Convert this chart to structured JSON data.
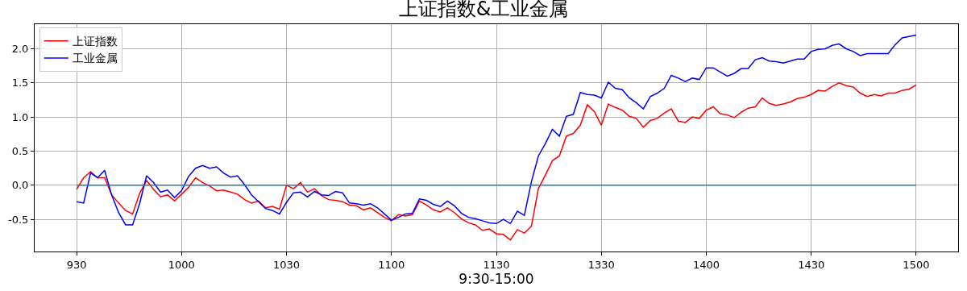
{
  "chart_data": {
    "type": "line",
    "title": "上证指数&工业金属",
    "xlabel": "9:30-15:00",
    "categories": [
      "930",
      null,
      null,
      null,
      null,
      null,
      null,
      null,
      null,
      null,
      null,
      null,
      null,
      null,
      null,
      "1000",
      null,
      null,
      null,
      null,
      null,
      null,
      null,
      null,
      null,
      null,
      null,
      null,
      null,
      null,
      "1030",
      null,
      null,
      null,
      null,
      null,
      null,
      null,
      null,
      null,
      null,
      null,
      null,
      null,
      null,
      "1100",
      null,
      null,
      null,
      null,
      null,
      null,
      null,
      null,
      null,
      null,
      null,
      null,
      null,
      null,
      "1130",
      null,
      null,
      null,
      null,
      null,
      null,
      null,
      null,
      null,
      null,
      null,
      null,
      null,
      null,
      "1330",
      null,
      null,
      null,
      null,
      null,
      null,
      null,
      null,
      null,
      null,
      null,
      null,
      null,
      null,
      "1400",
      null,
      null,
      null,
      null,
      null,
      null,
      null,
      null,
      null,
      null,
      null,
      null,
      null,
      null,
      "1430",
      null,
      null,
      null,
      null,
      null,
      null,
      null,
      null,
      null,
      null,
      null,
      null,
      null,
      null,
      "1500"
    ],
    "ylim": [
      -0.97,
      2.36
    ],
    "yticks": [
      -0.5,
      {
        "value": 0,
        "label": "0.0"
      },
      0.5,
      {
        "value": 1,
        "label": "1.0"
      },
      1.5,
      {
        "value": 2,
        "label": "2.0"
      }
    ],
    "grid": true,
    "legend": "top left",
    "marker": "none",
    "line_style": "solid",
    "series": [
      {
        "name": "上证指数",
        "color": "#ff0000",
        "values": [
          -0.06,
          0.11,
          0.2,
          0.11,
          0.11,
          -0.14,
          -0.26,
          -0.37,
          -0.42,
          -0.12,
          0.07,
          -0.06,
          -0.17,
          -0.14,
          -0.23,
          -0.13,
          -0.03,
          0.11,
          0.04,
          -0.01,
          -0.08,
          -0.07,
          -0.1,
          -0.13,
          -0.21,
          -0.26,
          -0.23,
          -0.33,
          -0.31,
          -0.35,
          0.0,
          -0.05,
          0.04,
          -0.1,
          -0.05,
          -0.15,
          -0.21,
          -0.22,
          -0.24,
          -0.29,
          -0.3,
          -0.36,
          -0.33,
          -0.4,
          -0.47,
          -0.52,
          -0.43,
          -0.45,
          -0.43,
          -0.23,
          -0.29,
          -0.36,
          -0.39,
          -0.33,
          -0.4,
          -0.49,
          -0.55,
          -0.58,
          -0.66,
          -0.64,
          -0.71,
          -0.72,
          -0.8,
          -0.65,
          -0.7,
          -0.6,
          -0.05,
          0.15,
          0.36,
          0.43,
          0.72,
          0.76,
          0.88,
          1.18,
          1.08,
          0.88,
          1.19,
          1.14,
          1.1,
          1.01,
          0.98,
          0.85,
          0.95,
          0.98,
          1.06,
          1.12,
          0.94,
          0.92,
          1.0,
          0.98,
          1.1,
          1.15,
          1.05,
          1.03,
          0.99,
          1.07,
          1.13,
          1.15,
          1.28,
          1.2,
          1.17,
          1.19,
          1.22,
          1.27,
          1.29,
          1.33,
          1.39,
          1.38,
          1.45,
          1.5,
          1.46,
          1.44,
          1.35,
          1.3,
          1.33,
          1.31,
          1.35,
          1.35,
          1.39,
          1.41,
          1.47
        ]
      },
      {
        "name": "工业金属",
        "color": "#0000ff",
        "values": [
          -0.24,
          -0.26,
          0.18,
          0.11,
          0.22,
          -0.14,
          -0.4,
          -0.58,
          -0.58,
          -0.27,
          0.14,
          0.04,
          -0.1,
          -0.07,
          -0.18,
          -0.08,
          0.13,
          0.25,
          0.29,
          0.25,
          0.27,
          0.18,
          0.12,
          0.14,
          0.01,
          -0.14,
          -0.24,
          -0.34,
          -0.37,
          -0.42,
          -0.25,
          -0.11,
          -0.1,
          -0.17,
          -0.09,
          -0.14,
          -0.15,
          -0.09,
          -0.11,
          -0.26,
          -0.27,
          -0.29,
          -0.27,
          -0.33,
          -0.42,
          -0.51,
          -0.47,
          -0.42,
          -0.41,
          -0.2,
          -0.22,
          -0.28,
          -0.31,
          -0.23,
          -0.3,
          -0.41,
          -0.47,
          -0.49,
          -0.52,
          -0.55,
          -0.56,
          -0.5,
          -0.56,
          -0.38,
          -0.44,
          0.05,
          0.43,
          0.61,
          0.82,
          0.72,
          1.01,
          1.04,
          1.36,
          1.33,
          1.32,
          1.28,
          1.51,
          1.42,
          1.4,
          1.28,
          1.21,
          1.12,
          1.3,
          1.35,
          1.42,
          1.61,
          1.57,
          1.52,
          1.57,
          1.55,
          1.72,
          1.72,
          1.66,
          1.6,
          1.64,
          1.71,
          1.71,
          1.84,
          1.87,
          1.82,
          1.81,
          1.79,
          1.82,
          1.85,
          1.85,
          1.96,
          1.99,
          2.0,
          2.05,
          2.07,
          2.0,
          1.96,
          1.9,
          1.93,
          1.93,
          1.93,
          1.93,
          2.06,
          2.16,
          2.18,
          2.2
        ]
      },
      {
        "color": "#1f77b4",
        "values": [
          0,
          0,
          0,
          0,
          0,
          0,
          0,
          0,
          0,
          0,
          0,
          0,
          0,
          0,
          0,
          0,
          0,
          0,
          0,
          0,
          0,
          0,
          0,
          0,
          0,
          0,
          0,
          0,
          0,
          0,
          0,
          0,
          0,
          0,
          0,
          0,
          0,
          0,
          0,
          0,
          0,
          0,
          0,
          0,
          0,
          0,
          0,
          0,
          0,
          0,
          0,
          0,
          0,
          0,
          0,
          0,
          0,
          0,
          0,
          0,
          0,
          0,
          0,
          0,
          0,
          0,
          0,
          0,
          0,
          0,
          0,
          0,
          0,
          0,
          0,
          0,
          0,
          0,
          0,
          0,
          0,
          0,
          0,
          0,
          0,
          0,
          0,
          0,
          0,
          0,
          0,
          0,
          0,
          0,
          0,
          0,
          0,
          0,
          0,
          0,
          0,
          0,
          0,
          0,
          0,
          0,
          0,
          0,
          0,
          0,
          0,
          0,
          0,
          0,
          0,
          0,
          0,
          0,
          0,
          0,
          0
        ]
      }
    ]
  }
}
